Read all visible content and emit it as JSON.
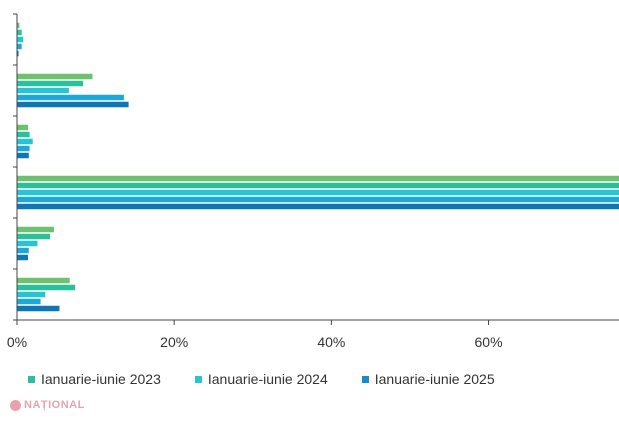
{
  "chart_data": {
    "type": "bar",
    "orientation": "horizontal",
    "categories": [
      "",
      "",
      "",
      "",
      "",
      ""
    ],
    "series": [
      {
        "name": "Ianuarie-iunie 2023",
        "color": "#6cc26f",
        "values": [
          0.3,
          9.6,
          1.4,
          77.4,
          4.7,
          6.7
        ]
      },
      {
        "name": "Ianuarie-iunie 2023",
        "color": "#2bbf9b",
        "values": [
          0.6,
          8.4,
          1.6,
          77.4,
          4.2,
          7.4
        ]
      },
      {
        "name": "Ianuarie-iunie 2024",
        "color": "#29c3d6",
        "values": [
          0.8,
          6.6,
          2.0,
          77.4,
          2.6,
          3.6
        ]
      },
      {
        "name": "Ianuarie-iunie 2024",
        "color": "#1ea8d8",
        "values": [
          0.6,
          13.6,
          1.6,
          77.4,
          1.5,
          3.0
        ]
      },
      {
        "name": "Ianuarie-iunie 2025",
        "color": "#0f75b5",
        "values": [
          0.2,
          14.2,
          1.5,
          77.4,
          1.4,
          5.4
        ]
      }
    ],
    "xlim": [
      0,
      76.6
    ],
    "x_ticks": [
      0,
      20,
      40,
      60
    ],
    "x_tick_labels": [
      "0%",
      "20%",
      "40%",
      "60%"
    ],
    "grid": false,
    "legend_position": "bottom",
    "legend": [
      {
        "label": "Ianuarie-iunie 2023",
        "color": "#2bbf9b"
      },
      {
        "label": "Ianuarie-iunie 2024",
        "color": "#29c3d6"
      },
      {
        "label": "Ianuarie-iunie 2025",
        "color": "#1a8cc8"
      }
    ]
  },
  "watermark": {
    "text": "NAȚIONAL"
  }
}
